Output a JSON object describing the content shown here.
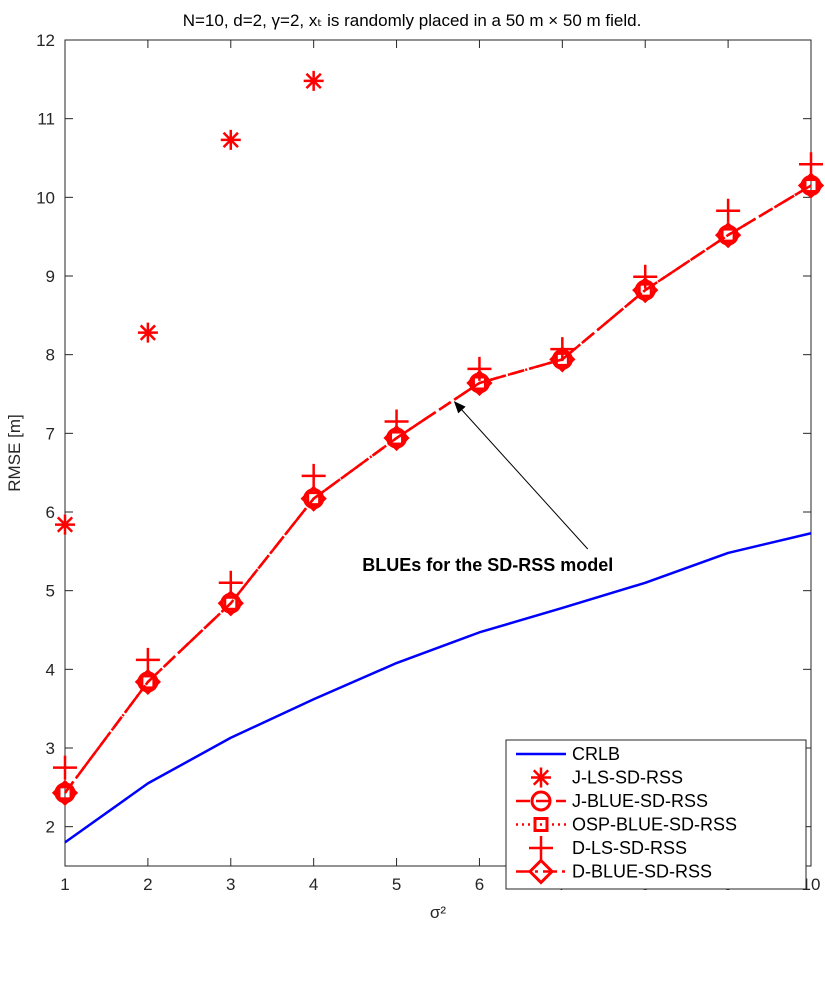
{
  "chart_data": {
    "type": "line",
    "title": "N=10, d=2, γ=2, xₜ is randomly placed in a 50 m × 50 m field.",
    "xlabel": "σ²",
    "ylabel": "RMSE [m]",
    "xlim": [
      1,
      10
    ],
    "ylim": [
      1.5,
      12
    ],
    "xticks": [
      1,
      2,
      3,
      4,
      5,
      6,
      7,
      8,
      9,
      10
    ],
    "yticks": [
      2,
      3,
      4,
      5,
      6,
      7,
      8,
      9,
      10,
      11,
      12
    ],
    "grid": false,
    "legend_position": "bottom-right",
    "x": [
      1,
      2,
      3,
      4,
      5,
      6,
      7,
      8,
      9,
      10
    ],
    "series": [
      {
        "name": "CRLB",
        "color": "#0000ff",
        "line": "solid",
        "marker": "none",
        "x": [
          1,
          2,
          3,
          4,
          5,
          6,
          7,
          8,
          9,
          10
        ],
        "values": [
          1.8,
          2.55,
          3.13,
          3.62,
          4.08,
          4.47,
          4.78,
          5.1,
          5.48,
          5.73
        ]
      },
      {
        "name": "J-LS-SD-RSS",
        "color": "#ff0000",
        "line": "none",
        "marker": "asterisk",
        "x": [
          1,
          2,
          3,
          4
        ],
        "values": [
          5.84,
          8.28,
          10.73,
          11.48
        ]
      },
      {
        "name": "J-BLUE-SD-RSS",
        "color": "#ff0000",
        "line": "dashed",
        "marker": "circle",
        "x": [
          1,
          2,
          3,
          4,
          5,
          6,
          7,
          8,
          9,
          10
        ],
        "values": [
          2.43,
          3.84,
          4.84,
          6.17,
          6.94,
          7.64,
          7.94,
          8.82,
          9.52,
          10.15
        ]
      },
      {
        "name": "OSP-BLUE-SD-RSS",
        "color": "#ff0000",
        "line": "dotted",
        "marker": "square",
        "x": [
          1,
          2,
          3,
          4,
          5,
          6,
          7,
          8,
          9,
          10
        ],
        "values": [
          2.43,
          3.84,
          4.84,
          6.17,
          6.94,
          7.64,
          7.94,
          8.82,
          9.52,
          10.15
        ]
      },
      {
        "name": "D-LS-SD-RSS",
        "color": "#ff0000",
        "line": "none",
        "marker": "plus",
        "x": [
          1,
          2,
          3,
          4,
          5,
          6,
          7,
          8,
          9,
          10
        ],
        "values": [
          2.75,
          4.12,
          5.1,
          6.46,
          7.15,
          7.82,
          8.07,
          8.99,
          9.83,
          10.42
        ]
      },
      {
        "name": "D-BLUE-SD-RSS",
        "color": "#ff0000",
        "line": "dashdot",
        "marker": "diamond",
        "x": [
          1,
          2,
          3,
          4,
          5,
          6,
          7,
          8,
          9,
          10
        ],
        "values": [
          2.43,
          3.84,
          4.84,
          6.17,
          6.94,
          7.64,
          7.94,
          8.82,
          9.52,
          10.15
        ]
      }
    ],
    "annotations": [
      {
        "text": "BLUEs for the SD-RSS model",
        "arrow_to": [
          5.7,
          7.4
        ],
        "text_at": [
          6.1,
          5.25
        ]
      }
    ]
  }
}
